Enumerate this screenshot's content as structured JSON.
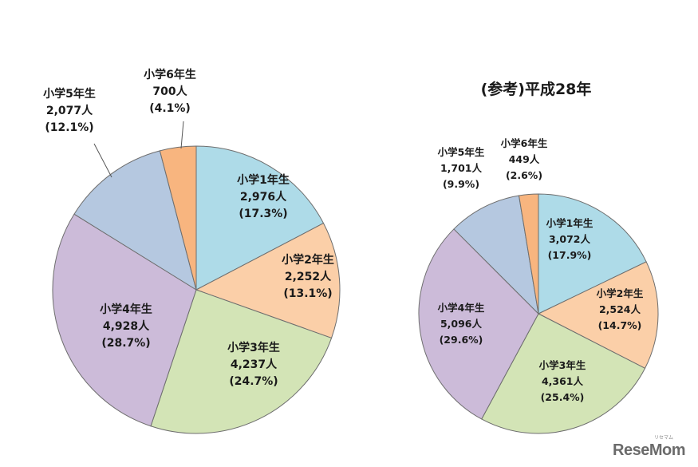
{
  "chart_data": [
    {
      "type": "pie",
      "title": "",
      "series": [
        {
          "categories": [
            "小学1年生",
            "小学2年生",
            "小学3年生",
            "小学4年生",
            "小学5年生",
            "小学6年生"
          ],
          "values": [
            2976,
            2252,
            4237,
            4928,
            2077,
            700
          ],
          "value_labels": [
            "2,976人",
            "2,252人",
            "4,237人",
            "4,928人",
            "2,077人",
            "700人"
          ],
          "percent_labels": [
            "(17.3%)",
            "(13.1%)",
            "(24.7%)",
            "(28.7%)",
            "(12.1%)",
            "(4.1%)"
          ]
        }
      ],
      "colors": [
        "#aedbe8",
        "#fbcfa8",
        "#d3e4b6",
        "#ccbbd9",
        "#b5c8e0",
        "#f8b57f"
      ],
      "start_angle": "12 o'clock, clockwise",
      "legend": "none"
    },
    {
      "type": "pie",
      "title": "(参考)平成28年",
      "series": [
        {
          "categories": [
            "小学1年生",
            "小学2年生",
            "小学3年生",
            "小学4年生",
            "小学5年生",
            "小学6年生"
          ],
          "values": [
            3072,
            2524,
            4361,
            5096,
            1701,
            449
          ],
          "value_labels": [
            "3,072人",
            "2,524人",
            "4,361人",
            "5,096人",
            "1,701人",
            "449人"
          ],
          "percent_labels": [
            "(17.9%)",
            "(14.7%)",
            "(25.4%)",
            "(29.6%)",
            "(9.9%)",
            "(2.6%)"
          ]
        }
      ],
      "colors": [
        "#aedbe8",
        "#fbcfa8",
        "#d3e4b6",
        "#ccbbd9",
        "#b5c8e0",
        "#f8b57f"
      ],
      "start_angle": "12 o'clock, clockwise",
      "legend": "none"
    }
  ],
  "watermark": {
    "logo_text": "ReseMom",
    "logo_subtext": "リセマム"
  }
}
